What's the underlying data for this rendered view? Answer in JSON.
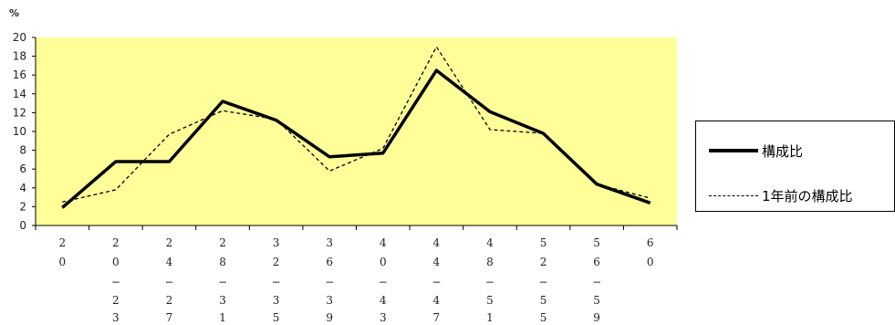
{
  "chart_data": {
    "type": "line",
    "ylabel": "%",
    "ylim": [
      0,
      20
    ],
    "yticks": [
      0,
      2,
      4,
      6,
      8,
      10,
      12,
      14,
      16,
      18,
      20
    ],
    "categories": [
      "20",
      "20−23",
      "24−27",
      "28−31",
      "32−35",
      "36−39",
      "40−43",
      "44−47",
      "48−51",
      "52−55",
      "56−59",
      "60"
    ],
    "category_glyphs": [
      [
        "2",
        "0"
      ],
      [
        "2",
        "0",
        "−",
        "2",
        "3"
      ],
      [
        "2",
        "4",
        "−",
        "2",
        "7"
      ],
      [
        "2",
        "8",
        "−",
        "3",
        "1"
      ],
      [
        "3",
        "2",
        "−",
        "3",
        "5"
      ],
      [
        "3",
        "6",
        "−",
        "3",
        "9"
      ],
      [
        "4",
        "0",
        "−",
        "4",
        "3"
      ],
      [
        "4",
        "4",
        "−",
        "4",
        "7"
      ],
      [
        "4",
        "8",
        "−",
        "5",
        "1"
      ],
      [
        "5",
        "2",
        "−",
        "5",
        "5"
      ],
      [
        "5",
        "6",
        "−",
        "5",
        "9"
      ],
      [
        "6",
        "0"
      ]
    ],
    "series": [
      {
        "name": "構成比",
        "style": "solid",
        "values": [
          1.9,
          6.8,
          6.8,
          13.2,
          11.2,
          7.3,
          7.7,
          16.5,
          12.1,
          9.8,
          4.4,
          2.4
        ]
      },
      {
        "name": "1年前の構成比",
        "style": "dashed",
        "values": [
          2.5,
          3.8,
          9.7,
          12.2,
          11.3,
          5.8,
          8.2,
          19.0,
          10.2,
          9.8,
          4.4,
          2.9
        ]
      }
    ],
    "plot_background": "#ffff99",
    "line_color": "#000000",
    "grid": false,
    "legend_position": "right"
  }
}
